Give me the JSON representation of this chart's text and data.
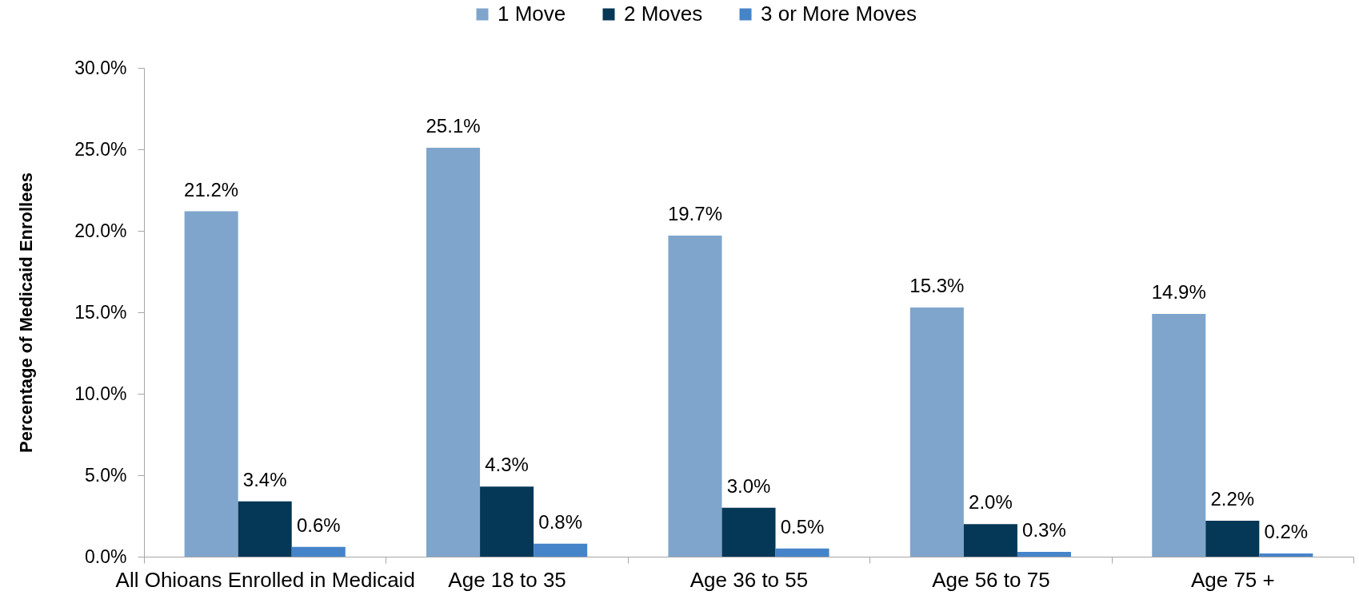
{
  "chart_data": {
    "type": "bar",
    "ylabel": "Percentage of Medicaid Enrollees",
    "categories": [
      "All Ohioans Enrolled in Medicaid",
      "Age 18 to 35",
      "Age 36 to 55",
      "Age 56 to 75",
      "Age 75 +"
    ],
    "series": [
      {
        "name": "1 Move",
        "color": "#7fa5cc",
        "values": [
          21.2,
          25.1,
          19.7,
          15.3,
          14.9
        ],
        "value_labels": [
          "21.2%",
          "25.1%",
          "19.7%",
          "15.3%",
          "14.9%"
        ]
      },
      {
        "name": "2 Moves",
        "color": "#053756",
        "values": [
          3.4,
          4.3,
          3.0,
          2.0,
          2.2
        ],
        "value_labels": [
          "3.4%",
          "4.3%",
          "3.0%",
          "2.0%",
          "2.2%"
        ]
      },
      {
        "name": "3 or More Moves",
        "color": "#4684c9",
        "values": [
          0.6,
          0.8,
          0.5,
          0.3,
          0.2
        ],
        "value_labels": [
          "0.6%",
          "0.8%",
          "0.5%",
          "0.3%",
          "0.2%"
        ]
      }
    ],
    "ylim": [
      0,
      30
    ],
    "yticks": [
      {
        "value": 0,
        "label": "0.0%"
      },
      {
        "value": 5,
        "label": "5.0%"
      },
      {
        "value": 10,
        "label": "10.0%"
      },
      {
        "value": 15,
        "label": "15.0%"
      },
      {
        "value": 20,
        "label": "20.0%"
      },
      {
        "value": 25,
        "label": "25.0%"
      },
      {
        "value": 30,
        "label": "30.0%"
      }
    ],
    "grid": false,
    "legend": "top"
  }
}
